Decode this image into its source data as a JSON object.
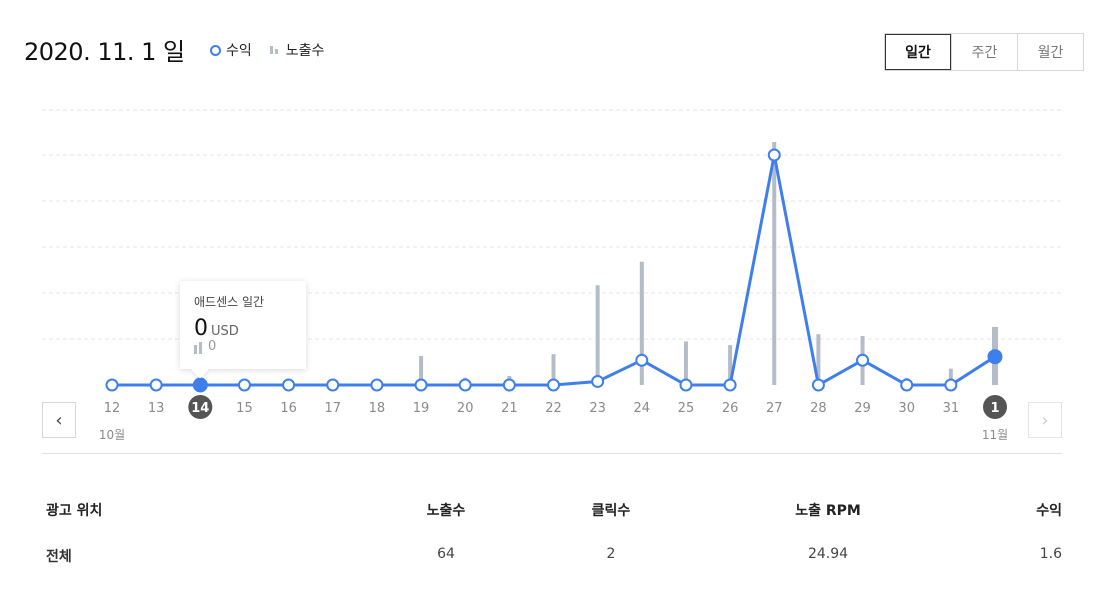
{
  "header": {
    "date": "2020. 11. 1 일",
    "legend_revenue": "수익",
    "legend_impressions": "노출수"
  },
  "period_tabs": [
    {
      "label": "일간",
      "active": true
    },
    {
      "label": "주간",
      "active": false
    },
    {
      "label": "월간",
      "active": false
    }
  ],
  "nav": {
    "prev": "‹",
    "next": "›"
  },
  "tooltip": {
    "title": "애드센스 일간",
    "value": "0",
    "unit": "USD",
    "impressions": "0"
  },
  "colors": {
    "line": "#3f7fec",
    "bar": "#b4bcc8",
    "selected_label": "#555555"
  },
  "chart_data": {
    "type": "line",
    "categories": [
      "12",
      "13",
      "14",
      "15",
      "16",
      "17",
      "18",
      "19",
      "20",
      "21",
      "22",
      "23",
      "24",
      "25",
      "26",
      "27",
      "28",
      "29",
      "30",
      "31",
      "1"
    ],
    "month_labels": [
      {
        "index": 0,
        "label": "10월"
      },
      {
        "index": 20,
        "label": "11월"
      }
    ],
    "highlighted_indices": [
      2,
      20
    ],
    "series": [
      {
        "name": "수익",
        "type": "line",
        "values": [
          0,
          0,
          0,
          0,
          0,
          0,
          0,
          0,
          0,
          0,
          0,
          0.04,
          0.28,
          0,
          0,
          2.6,
          0,
          0.28,
          0,
          0,
          0.32
        ]
      },
      {
        "name": "노출수",
        "type": "bar",
        "values": [
          0,
          0,
          0,
          0,
          0,
          0,
          0,
          16,
          4,
          5,
          17,
          55,
          68,
          24,
          22,
          134,
          28,
          27,
          4,
          9,
          32
        ]
      }
    ],
    "grid": true
  },
  "table": {
    "headers": [
      "광고 위치",
      "노출수",
      "클릭수",
      "노출 RPM",
      "수익"
    ],
    "rows": [
      [
        "전체",
        "64",
        "2",
        "24.94",
        "1.6"
      ]
    ]
  }
}
